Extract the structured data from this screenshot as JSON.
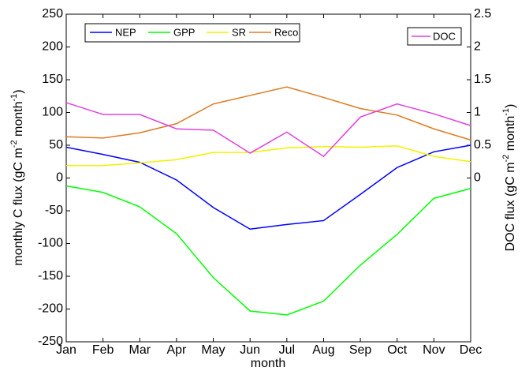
{
  "chart_data": {
    "type": "line",
    "xlabel": "month",
    "ylabel": [
      "monthly C flux (gC m",
      "-2",
      " month",
      "-1",
      ")"
    ],
    "y2label": [
      "DOC flux (gC m",
      "-2",
      " month",
      "-1",
      ")"
    ],
    "categories": [
      "Jan",
      "Feb",
      "Mar",
      "Apr",
      "May",
      "Jun",
      "Jul",
      "Aug",
      "Sep",
      "Oct",
      "Nov",
      "Dec"
    ],
    "ylim": [
      -250,
      250
    ],
    "yticks": [
      -250,
      -200,
      -150,
      -100,
      -50,
      0,
      50,
      100,
      150,
      200,
      250
    ],
    "y2lim": [
      -2.5,
      2.5
    ],
    "y2ticks": [
      0,
      0.5,
      1,
      1.5,
      2,
      2.5
    ],
    "series": [
      {
        "name": "NEP",
        "color": "#0000ff",
        "values": [
          47,
          36,
          24,
          -3,
          -45,
          -78,
          -71,
          -65,
          -25,
          16,
          40,
          50
        ]
      },
      {
        "name": "GPP",
        "color": "#00ff00",
        "values": [
          -12,
          -22,
          -44,
          -85,
          -152,
          -203,
          -209,
          -188,
          -133,
          -86,
          -31,
          -16
        ]
      },
      {
        "name": "SR",
        "color": "#f2f200",
        "values": [
          19,
          19,
          23,
          28,
          39,
          39,
          46,
          48,
          47,
          49,
          33,
          25
        ]
      },
      {
        "name": "Reco",
        "color": "#e07b20",
        "values": [
          63,
          61,
          69,
          83,
          113,
          126,
          139,
          123,
          106,
          96,
          75,
          58
        ]
      },
      {
        "name": "DOC",
        "color": "#e040e0",
        "axis": "y2",
        "values": [
          1.15,
          0.97,
          0.97,
          0.75,
          0.73,
          0.38,
          0.7,
          0.33,
          0.93,
          1.13,
          0.98,
          0.8
        ]
      }
    ]
  }
}
